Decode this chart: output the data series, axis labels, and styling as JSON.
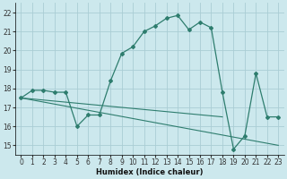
{
  "background_color": "#cce8ed",
  "grid_color": "#aacdd4",
  "line_color": "#2e7d6e",
  "xlabel": "Humidex (Indice chaleur)",
  "xlim": [
    -0.5,
    23.5
  ],
  "ylim": [
    14.5,
    22.5
  ],
  "xticks": [
    0,
    1,
    2,
    3,
    4,
    5,
    6,
    7,
    8,
    9,
    10,
    11,
    12,
    13,
    14,
    15,
    16,
    17,
    18,
    19,
    20,
    21,
    22,
    23
  ],
  "yticks": [
    15,
    16,
    17,
    18,
    19,
    20,
    21,
    22
  ],
  "main_x": [
    0,
    1,
    2,
    3,
    4,
    5,
    6,
    7,
    8,
    9,
    10,
    11,
    12,
    13,
    14,
    15,
    16,
    17,
    18,
    19,
    20,
    21,
    22,
    23
  ],
  "main_y": [
    17.5,
    17.9,
    17.9,
    17.8,
    17.8,
    16.0,
    16.6,
    16.6,
    18.4,
    19.85,
    20.2,
    21.0,
    21.3,
    21.7,
    21.85,
    21.1,
    21.5,
    21.2,
    17.8,
    14.8,
    15.5,
    18.8,
    16.5,
    16.5
  ],
  "trend1_x": [
    0,
    23
  ],
  "trend1_y": [
    17.5,
    15.0
  ],
  "trend2_x": [
    0,
    18
  ],
  "trend2_y": [
    17.5,
    16.5
  ]
}
